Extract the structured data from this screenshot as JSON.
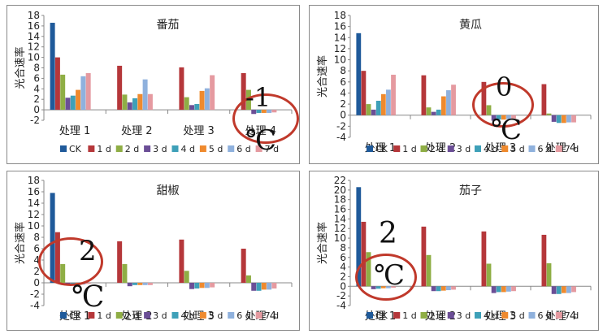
{
  "colors": [
    "#1f5a9a",
    "#b5373a",
    "#8fae45",
    "#6b4e96",
    "#3ea0b8",
    "#ef8a2e",
    "#8fb1dd",
    "#e59aa0"
  ],
  "chart_data": [
    {
      "type": "bar",
      "title": "番茄",
      "ylabel": "光合速率",
      "ylim": [
        -2,
        18
      ],
      "yticks": [
        "18",
        "16",
        "14",
        "12",
        "10",
        "8",
        "6",
        "4",
        "2",
        "0",
        "-2"
      ],
      "categories": [
        "处理 1",
        "处理 2",
        "处理 3",
        "处理 4"
      ],
      "series": [
        {
          "name": "CK",
          "values": [
            16.6,
            null,
            null,
            null
          ]
        },
        {
          "name": "1 d",
          "values": [
            10.0,
            8.4,
            8.1,
            7.0
          ]
        },
        {
          "name": "2 d",
          "values": [
            6.7,
            2.9,
            2.4,
            3.8
          ]
        },
        {
          "name": "3 d",
          "values": [
            2.3,
            1.4,
            0.9,
            -0.8
          ]
        },
        {
          "name": "4 d",
          "values": [
            2.7,
            2.2,
            1.1,
            -0.6
          ]
        },
        {
          "name": "5 d",
          "values": [
            3.8,
            3.0,
            3.6,
            -0.6
          ]
        },
        {
          "name": "6 d",
          "values": [
            6.4,
            5.8,
            4.1,
            -0.6
          ]
        },
        {
          "name": "7 d",
          "values": [
            7.0,
            3.0,
            6.6,
            -0.5
          ]
        }
      ],
      "annotation": {
        "value": "-1",
        "unit": "℃"
      }
    },
    {
      "type": "bar",
      "title": "黄瓜",
      "ylabel": "光合速率",
      "ylim": [
        -4,
        18
      ],
      "yticks": [
        "18",
        "16",
        "14",
        "12",
        "10",
        "8",
        "6",
        "4",
        "2",
        "0",
        "-2",
        "-4"
      ],
      "categories": [
        "处理 1",
        "处理 2",
        "处理 3",
        "处理 4"
      ],
      "series": [
        {
          "name": "CK",
          "values": [
            14.8,
            null,
            null,
            null
          ]
        },
        {
          "name": "1 d",
          "values": [
            8.0,
            7.2,
            6.0,
            5.6
          ]
        },
        {
          "name": "2 d",
          "values": [
            2.0,
            1.4,
            1.8,
            0.3
          ]
        },
        {
          "name": "3 d",
          "values": [
            1.0,
            0.6,
            -1.0,
            -1.2
          ]
        },
        {
          "name": "4 d",
          "values": [
            2.6,
            1.0,
            -0.8,
            -1.4
          ]
        },
        {
          "name": "5 d",
          "values": [
            3.8,
            3.4,
            -0.8,
            -1.4
          ]
        },
        {
          "name": "6 d",
          "values": [
            4.6,
            4.5,
            -0.7,
            -1.3
          ]
        },
        {
          "name": "7 d",
          "values": [
            7.3,
            5.5,
            -0.6,
            -1.3
          ]
        }
      ],
      "annotation": {
        "value": "0",
        "unit": "℃"
      }
    },
    {
      "type": "bar",
      "title": "甜椒",
      "ylabel": "光合速率",
      "ylim": [
        -4,
        18
      ],
      "yticks": [
        "18",
        "16",
        "14",
        "12",
        "10",
        "8",
        "6",
        "4",
        "2",
        "0",
        "-2",
        "-4"
      ],
      "categories": [
        "处理 1",
        "处理 2",
        "处理 3",
        "处理 4"
      ],
      "series": [
        {
          "name": "CK",
          "values": [
            15.8,
            null,
            null,
            null
          ]
        },
        {
          "name": "1 d",
          "values": [
            8.9,
            7.3,
            7.6,
            6.0
          ]
        },
        {
          "name": "2 d",
          "values": [
            3.3,
            3.3,
            2.1,
            1.3
          ]
        },
        {
          "name": "3 d",
          "values": [
            -0.4,
            -0.6,
            -1.1,
            -1.4
          ]
        },
        {
          "name": "4 d",
          "values": [
            -0.4,
            -0.4,
            -1.0,
            -1.4
          ]
        },
        {
          "name": "5 d",
          "values": [
            -0.3,
            -0.4,
            -0.9,
            -1.2
          ]
        },
        {
          "name": "6 d",
          "values": [
            -0.3,
            -0.4,
            -0.9,
            -1.2
          ]
        },
        {
          "name": "7 d",
          "values": [
            -0.2,
            -0.4,
            -0.8,
            -1.0
          ]
        }
      ],
      "annotation": {
        "value": "2",
        "unit": "℃"
      }
    },
    {
      "type": "bar",
      "title": "茄子",
      "ylabel": "光合速率",
      "ylim": [
        -4,
        22
      ],
      "yticks": [
        "22",
        "20",
        "18",
        "16",
        "14",
        "12",
        "10",
        "8",
        "6",
        "4",
        "2",
        "0",
        "-2",
        "-4"
      ],
      "categories": [
        "处理 1",
        "处理 2",
        "处理 3",
        "处理 4"
      ],
      "series": [
        {
          "name": "CK",
          "values": [
            20.6,
            null,
            null,
            null
          ]
        },
        {
          "name": "1 d",
          "values": [
            13.4,
            12.4,
            11.4,
            10.7
          ]
        },
        {
          "name": "2 d",
          "values": [
            7.1,
            6.5,
            4.7,
            4.8
          ]
        },
        {
          "name": "3 d",
          "values": [
            -0.6,
            -1.0,
            -1.4,
            -1.6
          ]
        },
        {
          "name": "4 d",
          "values": [
            -0.5,
            -1.0,
            -1.2,
            -1.6
          ]
        },
        {
          "name": "5 d",
          "values": [
            -0.4,
            -0.9,
            -1.2,
            -1.4
          ]
        },
        {
          "name": "6 d",
          "values": [
            -0.4,
            -0.8,
            -1.1,
            -1.4
          ]
        },
        {
          "name": "7 d",
          "values": [
            -0.3,
            -0.7,
            -1.0,
            -1.2
          ]
        }
      ],
      "annotation": {
        "value": "2",
        "unit": "℃"
      }
    }
  ]
}
